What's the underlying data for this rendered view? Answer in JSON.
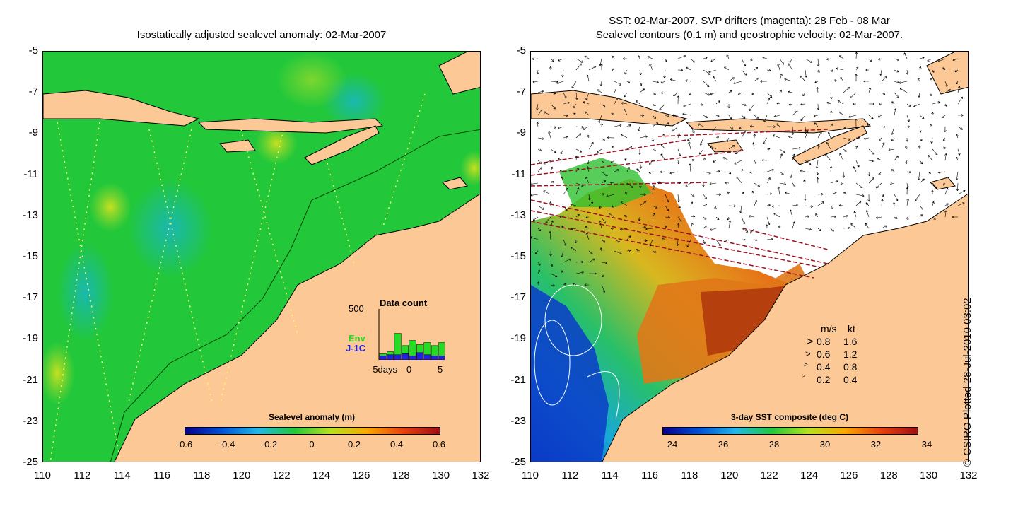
{
  "left_panel": {
    "title": "Isostatically adjusted sealevel anomaly: 02-Mar-2007",
    "colorbar": {
      "title": "Sealevel anomaly (m)",
      "labels": [
        "-0.6",
        "-0.4",
        "-0.2",
        "0",
        "0.2",
        "0.4",
        "0.6"
      ]
    },
    "data_count": {
      "title": "Data count",
      "ymax_label": "500",
      "series_labels": [
        "Env",
        "J-1C"
      ],
      "series_colors": [
        "#22dd22",
        "#2222dd"
      ],
      "x_labels": [
        "-5days",
        "0",
        "5"
      ],
      "env_values": [
        60,
        80,
        260,
        140,
        190,
        150,
        170,
        140,
        170
      ],
      "j1c_values": [
        40,
        50,
        50,
        60,
        40,
        70,
        50,
        40,
        40
      ]
    }
  },
  "right_panel": {
    "title_line1": "SST: 02-Mar-2007. SVP drifters (magenta): 28 Feb - 08 Mar",
    "title_line2": "Sealevel contours (0.1 m) and geostrophic velocity: 02-Mar-2007.",
    "colorbar": {
      "title": "3-day SST composite (deg C)",
      "labels": [
        "24",
        "26",
        "28",
        "30",
        "32",
        "34"
      ]
    },
    "velocity_legend": {
      "header_ms": "m/s",
      "header_kt": "kt",
      "rows": [
        {
          "ms": "0.8",
          "kt": "1.6"
        },
        {
          "ms": "0.6",
          "kt": "1.2"
        },
        {
          "ms": "0.4",
          "kt": "0.8"
        },
        {
          "ms": "0.2",
          "kt": "0.4"
        }
      ]
    }
  },
  "axes": {
    "y_labels": [
      "-5",
      "-7",
      "-9",
      "-11",
      "-13",
      "-15",
      "-17",
      "-19",
      "-21",
      "-23",
      "-25"
    ],
    "x_labels": [
      "110",
      "112",
      "114",
      "116",
      "118",
      "120",
      "122",
      "124",
      "126",
      "128",
      "130",
      "132"
    ],
    "lon_range": [
      110,
      132
    ],
    "lat_range": [
      -25,
      -5
    ]
  },
  "credit": "© CSIRO Plotted 28-Jul-2010 03:02",
  "colors": {
    "land": "#fcc896",
    "sea_green": "#22c83a"
  }
}
